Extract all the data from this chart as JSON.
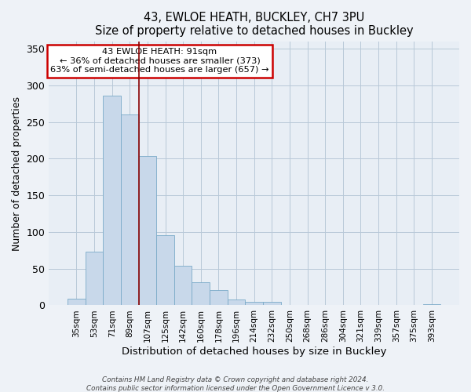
{
  "title": "43, EWLOE HEATH, BUCKLEY, CH7 3PU",
  "subtitle": "Size of property relative to detached houses in Buckley",
  "xlabel": "Distribution of detached houses by size in Buckley",
  "ylabel": "Number of detached properties",
  "bar_labels": [
    "35sqm",
    "53sqm",
    "71sqm",
    "89sqm",
    "107sqm",
    "125sqm",
    "142sqm",
    "160sqm",
    "178sqm",
    "196sqm",
    "214sqm",
    "232sqm",
    "250sqm",
    "268sqm",
    "286sqm",
    "304sqm",
    "321sqm",
    "339sqm",
    "357sqm",
    "375sqm",
    "393sqm"
  ],
  "bar_values": [
    9,
    73,
    286,
    260,
    204,
    96,
    54,
    31,
    21,
    8,
    5,
    5,
    0,
    0,
    0,
    0,
    0,
    0,
    0,
    0,
    2
  ],
  "bar_color": "#c8d8ea",
  "bar_edge_color": "#7aaac8",
  "vline_x": 3.5,
  "vline_color": "#880000",
  "ylim": [
    0,
    360
  ],
  "yticks": [
    0,
    50,
    100,
    150,
    200,
    250,
    300,
    350
  ],
  "annotation_title": "43 EWLOE HEATH: 91sqm",
  "annotation_line1": "← 36% of detached houses are smaller (373)",
  "annotation_line2": "63% of semi-detached houses are larger (657) →",
  "annotation_box_color": "#ffffff",
  "annotation_border_color": "#cc0000",
  "footer1": "Contains HM Land Registry data © Crown copyright and database right 2024.",
  "footer2": "Contains public sector information licensed under the Open Government Licence v 3.0.",
  "background_color": "#eef2f7",
  "plot_background_color": "#e8eef5",
  "grid_color": "#b8c8d8"
}
